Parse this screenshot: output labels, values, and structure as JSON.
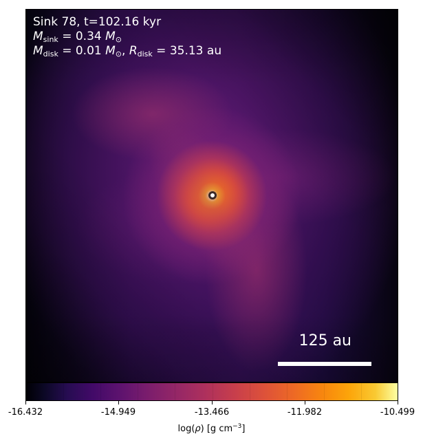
{
  "image": {
    "type": "simulation density slice",
    "colormap": "inferno-like",
    "subject": "sink particle with disk and spiral filament"
  },
  "annotations": {
    "sink_title": "Sink 78, t=102.16 kyr",
    "m_symbol": "M",
    "sink_subscript": "sink",
    "mass_equals": " = 0.34 ",
    "solar_symbol": "⊙",
    "disk_subscript": "disk",
    "disk_mass_equals": " = 0.01 ",
    "r_symbol": "R",
    "disk_radius_equals": " = 35.13 au",
    "scale_label": "125 au"
  },
  "colorbar": {
    "ticks": [
      "-16.432",
      "-14.949",
      "-13.466",
      "-11.982",
      "-10.499"
    ],
    "label_prefix": "log(",
    "rho_symbol": "ρ",
    "label_suffix": ") [g cm",
    "unit_power": "−3",
    "label_close": "]"
  },
  "colors": {
    "background": "#ffffff",
    "annotation_text": "#ffffff",
    "sink_marker_fill": "#ffffff",
    "sink_marker_outline": "#3b2926"
  }
}
